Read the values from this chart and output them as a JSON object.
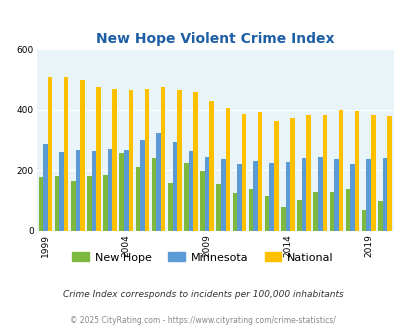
{
  "title": "New Hope Violent Crime Index",
  "years": [
    1999,
    2000,
    2001,
    2002,
    2003,
    2004,
    2005,
    2006,
    2007,
    2008,
    2009,
    2010,
    2011,
    2012,
    2013,
    2014,
    2015,
    2016,
    2017,
    2018,
    2019,
    2020
  ],
  "new_hope": [
    178,
    182,
    165,
    183,
    185,
    258,
    210,
    240,
    160,
    225,
    197,
    155,
    125,
    138,
    115,
    78,
    103,
    130,
    130,
    140,
    68,
    100
  ],
  "minnesota": [
    288,
    262,
    268,
    265,
    270,
    268,
    302,
    325,
    295,
    265,
    245,
    238,
    220,
    232,
    225,
    228,
    240,
    243,
    238,
    220,
    237,
    240
  ],
  "national": [
    510,
    510,
    498,
    475,
    470,
    465,
    470,
    475,
    465,
    460,
    430,
    405,
    388,
    392,
    365,
    372,
    383,
    385,
    400,
    397,
    385,
    380
  ],
  "bar_colors": [
    "#7db93f",
    "#5b9bd5",
    "#ffc000"
  ],
  "bg_color": "#e8f4f8",
  "ylim": [
    0,
    600
  ],
  "yticks": [
    0,
    200,
    400,
    600
  ],
  "xlabel_ticks": [
    1999,
    2004,
    2009,
    2014,
    2019
  ],
  "legend_labels": [
    "New Hope",
    "Minnesota",
    "National"
  ],
  "footnote1": "Crime Index corresponds to incidents per 100,000 inhabitants",
  "footnote2": "© 2025 CityRating.com - https://www.cityrating.com/crime-statistics/",
  "title_color": "#1f5fa6",
  "footnote1_color": "#333333",
  "footnote2_color": "#888888",
  "grid_color": "#ffffff"
}
